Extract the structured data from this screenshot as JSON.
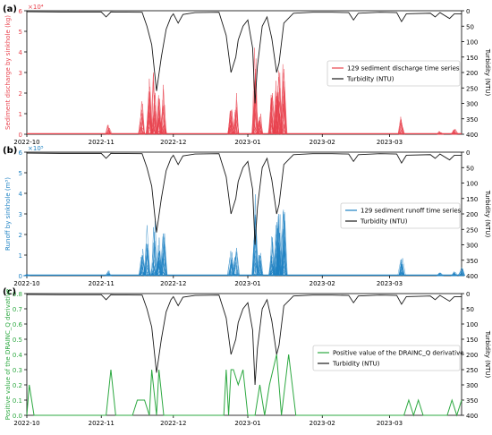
{
  "colors": {
    "red": "#e8424d",
    "blue": "#1f82c3",
    "green": "#2ca840",
    "black": "#1a1a1a"
  },
  "x_axis": {
    "start": "2022-10-01",
    "end": "2023-03-31",
    "ticks": [
      {
        "date": "2022-10-01",
        "label": "2022-10"
      },
      {
        "date": "2022-11-01",
        "label": "2022-11"
      },
      {
        "date": "2022-12-01",
        "label": "2022-12"
      },
      {
        "date": "2023-01-01",
        "label": "2023-01"
      },
      {
        "date": "2023-02-01",
        "label": "2023-02"
      },
      {
        "date": "2023-03-01",
        "label": "2023-03"
      }
    ]
  },
  "turbidity_series": {
    "name": "Turbidity (NTU)",
    "ylabel": "Turbidity (NTU)",
    "ylim_inverted": [
      0,
      400
    ],
    "ticks": [
      0,
      50,
      100,
      150,
      200,
      250,
      300,
      350,
      400
    ],
    "points": [
      [
        "2022-10-01",
        3
      ],
      [
        "2022-10-15",
        4
      ],
      [
        "2022-11-01",
        4
      ],
      [
        "2022-11-03",
        20
      ],
      [
        "2022-11-05",
        4
      ],
      [
        "2022-11-18",
        5
      ],
      [
        "2022-11-20",
        50
      ],
      [
        "2022-11-22",
        110
      ],
      [
        "2022-11-24",
        260
      ],
      [
        "2022-11-26",
        150
      ],
      [
        "2022-11-28",
        60
      ],
      [
        "2022-11-30",
        20
      ],
      [
        "2022-12-01",
        10
      ],
      [
        "2022-12-03",
        40
      ],
      [
        "2022-12-05",
        12
      ],
      [
        "2022-12-10",
        6
      ],
      [
        "2022-12-20",
        5
      ],
      [
        "2022-12-23",
        80
      ],
      [
        "2022-12-25",
        200
      ],
      [
        "2022-12-27",
        150
      ],
      [
        "2022-12-28",
        95
      ],
      [
        "2022-12-30",
        50
      ],
      [
        "2023-01-01",
        30
      ],
      [
        "2023-01-03",
        120
      ],
      [
        "2023-01-04",
        300
      ],
      [
        "2023-01-05",
        180
      ],
      [
        "2023-01-07",
        50
      ],
      [
        "2023-01-09",
        20
      ],
      [
        "2023-01-11",
        90
      ],
      [
        "2023-01-13",
        200
      ],
      [
        "2023-01-14",
        170
      ],
      [
        "2023-01-16",
        40
      ],
      [
        "2023-01-20",
        8
      ],
      [
        "2023-01-28",
        5
      ],
      [
        "2023-02-05",
        5
      ],
      [
        "2023-02-12",
        6
      ],
      [
        "2023-02-14",
        30
      ],
      [
        "2023-02-16",
        8
      ],
      [
        "2023-02-25",
        5
      ],
      [
        "2023-03-04",
        6
      ],
      [
        "2023-03-06",
        35
      ],
      [
        "2023-03-08",
        10
      ],
      [
        "2023-03-18",
        8
      ],
      [
        "2023-03-20",
        20
      ],
      [
        "2023-03-22",
        6
      ],
      [
        "2023-03-26",
        25
      ],
      [
        "2023-03-28",
        10
      ],
      [
        "2023-03-31",
        10
      ]
    ]
  },
  "chart_data": [
    {
      "type": "line",
      "panel": "(a)",
      "ylabel": "Sediment discharge by sinkhole (kg)",
      "scale_label": "×10⁴",
      "ylim": [
        0,
        60000
      ],
      "yticks": [
        0,
        1,
        2,
        3,
        4,
        5,
        6
      ],
      "series": [
        {
          "name": "129 sediment discharge time series",
          "spikes": [
            [
              "2022-11-04",
              4500
            ],
            [
              "2022-11-18",
              16000
            ],
            [
              "2022-11-21",
              27000
            ],
            [
              "2022-11-23",
              30000
            ],
            [
              "2022-11-25",
              19000
            ],
            [
              "2022-11-27",
              24000
            ],
            [
              "2022-12-25",
              12000
            ],
            [
              "2022-12-27",
              20000
            ],
            [
              "2023-01-04",
              42000
            ],
            [
              "2023-01-06",
              10000
            ],
            [
              "2023-01-11",
              20000
            ],
            [
              "2023-01-13",
              26000
            ],
            [
              "2023-01-14",
              31000
            ],
            [
              "2023-01-16",
              34000
            ],
            [
              "2023-03-06",
              8500
            ],
            [
              "2023-03-22",
              1500
            ],
            [
              "2023-03-28",
              2500
            ]
          ]
        },
        {
          "name": "Turbidity (NTU)"
        }
      ]
    },
    {
      "type": "line",
      "panel": "(b)",
      "ylabel": "Runoff by sinkhole (m³)",
      "scale_label": "×10⁵",
      "ylim": [
        0,
        600000
      ],
      "yticks": [
        0,
        1,
        2,
        3,
        4,
        5,
        6
      ],
      "series": [
        {
          "name": "129 sediment runoff time series",
          "spikes": [
            [
              "2022-10-01",
              8000
            ],
            [
              "2022-11-04",
              25000
            ],
            [
              "2022-11-18",
              130000
            ],
            [
              "2022-11-20",
              245000
            ],
            [
              "2022-11-23",
              265000
            ],
            [
              "2022-11-25",
              185000
            ],
            [
              "2022-11-27",
              205000
            ],
            [
              "2022-12-25",
              120000
            ],
            [
              "2022-12-27",
              135000
            ],
            [
              "2023-01-04",
              395000
            ],
            [
              "2023-01-06",
              110000
            ],
            [
              "2023-01-11",
              190000
            ],
            [
              "2023-01-13",
              260000
            ],
            [
              "2023-01-14",
              300000
            ],
            [
              "2023-01-16",
              320000
            ],
            [
              "2023-03-06",
              85000
            ],
            [
              "2023-03-22",
              15000
            ],
            [
              "2023-03-28",
              20000
            ],
            [
              "2023-03-31",
              40000
            ]
          ]
        },
        {
          "name": "Turbidity (NTU)"
        }
      ]
    },
    {
      "type": "line",
      "panel": "(c)",
      "ylabel": "Positive value of the DRAINC_Q derivative",
      "ylim": [
        0,
        0.8
      ],
      "yticks": [
        0.0,
        0.1,
        0.2,
        0.3,
        0.4,
        0.5,
        0.6,
        0.7,
        0.8
      ],
      "series": [
        {
          "name": "Positive value of the DRAINC_Q derivative",
          "points": [
            [
              "2022-10-01",
              0.0
            ],
            [
              "2022-10-02",
              0.2
            ],
            [
              "2022-10-04",
              0.0
            ],
            [
              "2022-11-03",
              0.0
            ],
            [
              "2022-11-05",
              0.3
            ],
            [
              "2022-11-07",
              0.0
            ],
            [
              "2022-11-14",
              0.0
            ],
            [
              "2022-11-16",
              0.1
            ],
            [
              "2022-11-19",
              0.1
            ],
            [
              "2022-11-21",
              0.0
            ],
            [
              "2022-11-22",
              0.3
            ],
            [
              "2022-11-24",
              0.0
            ],
            [
              "2022-11-25",
              0.3
            ],
            [
              "2022-11-27",
              0.0
            ],
            [
              "2022-12-22",
              0.0
            ],
            [
              "2022-12-23",
              0.3
            ],
            [
              "2022-12-24",
              0.0
            ],
            [
              "2022-12-25",
              0.3
            ],
            [
              "2022-12-26",
              0.3
            ],
            [
              "2022-12-28",
              0.2
            ],
            [
              "2022-12-30",
              0.3
            ],
            [
              "2023-01-01",
              0.0
            ],
            [
              "2023-01-04",
              0.0
            ],
            [
              "2023-01-06",
              0.2
            ],
            [
              "2023-01-08",
              0.0
            ],
            [
              "2023-01-10",
              0.2
            ],
            [
              "2023-01-13",
              0.4
            ],
            [
              "2023-01-15",
              0.0
            ],
            [
              "2023-01-18",
              0.4
            ],
            [
              "2023-01-21",
              0.0
            ],
            [
              "2023-03-07",
              0.0
            ],
            [
              "2023-03-09",
              0.1
            ],
            [
              "2023-03-11",
              0.0
            ],
            [
              "2023-03-13",
              0.1
            ],
            [
              "2023-03-15",
              0.0
            ],
            [
              "2023-03-25",
              0.0
            ],
            [
              "2023-03-27",
              0.1
            ],
            [
              "2023-03-29",
              0.0
            ],
            [
              "2023-03-31",
              0.1
            ]
          ]
        },
        {
          "name": "Turbidity (NTU)"
        }
      ]
    }
  ]
}
